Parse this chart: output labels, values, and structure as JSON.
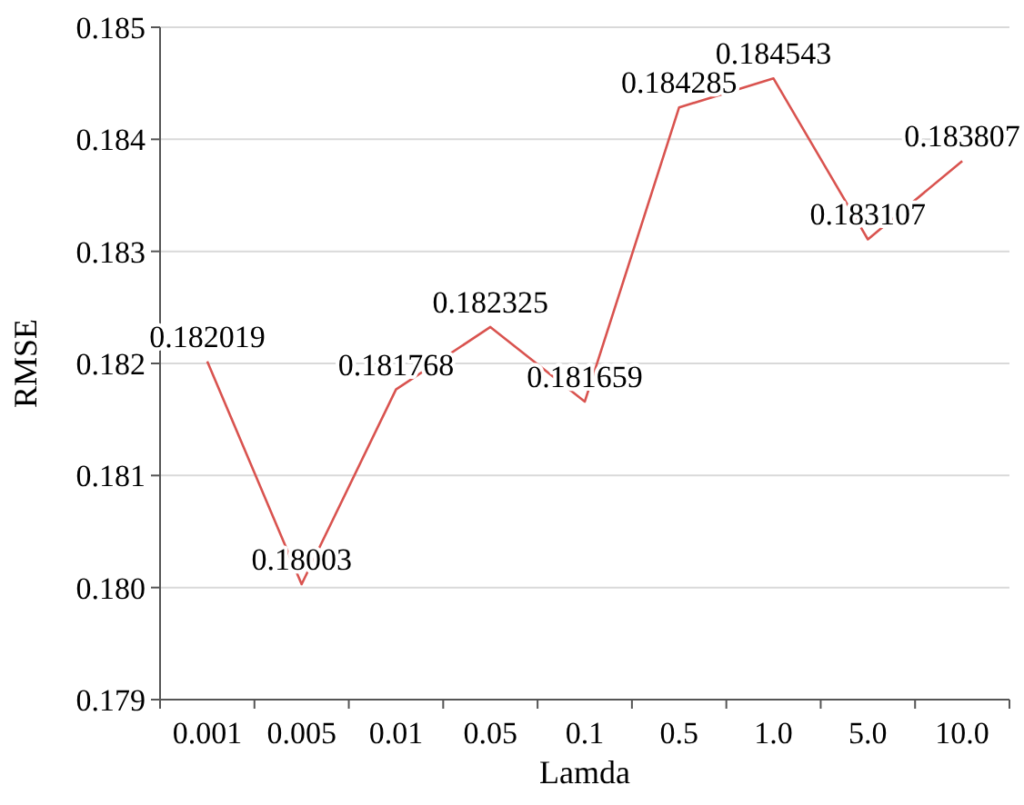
{
  "chart_data": {
    "type": "line",
    "xlabel": "Lamda",
    "ylabel": "RMSE",
    "categories": [
      "0.001",
      "0.005",
      "0.01",
      "0.05",
      "0.1",
      "0.5",
      "1.0",
      "5.0",
      "10.0"
    ],
    "series": [
      {
        "color": "#d9534f",
        "values": [
          0.182019,
          0.18003,
          0.181768,
          0.182325,
          0.181659,
          0.184285,
          0.184543,
          0.183107,
          0.183807
        ]
      }
    ],
    "ylim": [
      0.179,
      0.185
    ],
    "yticks": [
      {
        "value": 0.179,
        "label": "0.179"
      },
      {
        "value": 0.18,
        "label": "0.180"
      },
      {
        "value": 0.181,
        "label": "0.181"
      },
      {
        "value": 0.182,
        "label": "0.182"
      },
      {
        "value": 0.183,
        "label": "0.183"
      },
      {
        "value": 0.184,
        "label": "0.184"
      },
      {
        "value": 0.185,
        "label": "0.185"
      }
    ],
    "grid": "y",
    "data_labels": true,
    "marker": "none",
    "line_style": "solid"
  }
}
